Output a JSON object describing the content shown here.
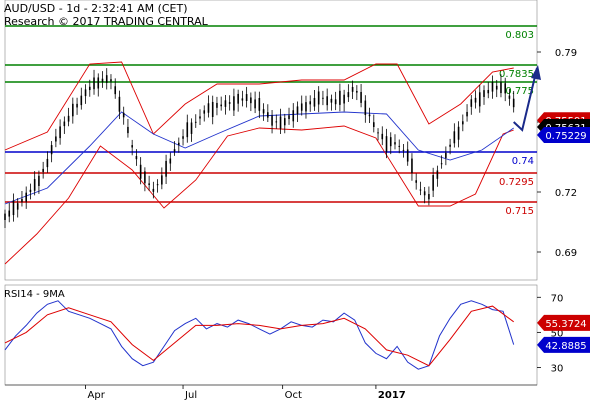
{
  "header": {
    "line1": "AUD/USD - 1d - 2:32:41 AM (CET)",
    "line2": "Research © 2017 TRADING CENTRAL"
  },
  "colors": {
    "green": "#008000",
    "blue": "#0000cc",
    "red": "#cc0000",
    "price": "#000000",
    "bollinger": "#dd0000",
    "ma": "#2233cc",
    "arrow": "#1a2a8a"
  },
  "chart_data": [
    {
      "type": "candlestick",
      "title": "AUD/USD - 1d",
      "price_axis": {
        "ticks": [
          "0.79",
          "0.755",
          "0.72",
          "0.69"
        ],
        "range": [
          0.676,
          0.816
        ]
      },
      "time_axis": {
        "ticks": [
          "Apr",
          "Jul",
          "Oct",
          "2017"
        ]
      },
      "levels": [
        {
          "label": "0.803",
          "value": 0.803,
          "color": "green",
          "style": "solid"
        },
        {
          "label": "0.7835",
          "value": 0.7835,
          "color": "green",
          "style": "solid"
        },
        {
          "label": "0.775",
          "value": 0.775,
          "color": "green",
          "style": "solid"
        },
        {
          "label": "0.74",
          "value": 0.74,
          "color": "blue",
          "style": "solid"
        },
        {
          "label": "0.7295",
          "value": 0.7295,
          "color": "red",
          "style": "solid"
        },
        {
          "label": "0.715",
          "value": 0.715,
          "color": "red",
          "style": "solid"
        }
      ],
      "price_tags": [
        {
          "label": "0.75591",
          "value": 0.7559,
          "color": "red"
        },
        {
          "label": "0.75631",
          "value": 0.7525,
          "color": "black"
        },
        {
          "label": "0.75229",
          "value": 0.7485,
          "color": "blue"
        }
      ],
      "price_path": [
        [
          0,
          0.708
        ],
        [
          5,
          0.712
        ],
        [
          10,
          0.718
        ],
        [
          15,
          0.724
        ],
        [
          20,
          0.735
        ],
        [
          25,
          0.749
        ],
        [
          30,
          0.757
        ],
        [
          35,
          0.765
        ],
        [
          40,
          0.772
        ],
        [
          45,
          0.776
        ],
        [
          50,
          0.776
        ],
        [
          55,
          0.762
        ],
        [
          60,
          0.743
        ],
        [
          65,
          0.728
        ],
        [
          70,
          0.721
        ],
        [
          75,
          0.728
        ],
        [
          80,
          0.741
        ],
        [
          85,
          0.749
        ],
        [
          90,
          0.755
        ],
        [
          95,
          0.761
        ],
        [
          100,
          0.763
        ],
        [
          105,
          0.764
        ],
        [
          110,
          0.766
        ],
        [
          115,
          0.767
        ],
        [
          120,
          0.763
        ],
        [
          125,
          0.757
        ],
        [
          130,
          0.754
        ],
        [
          135,
          0.758
        ],
        [
          140,
          0.762
        ],
        [
          145,
          0.765
        ],
        [
          150,
          0.767
        ],
        [
          155,
          0.765
        ],
        [
          160,
          0.767
        ],
        [
          165,
          0.772
        ],
        [
          170,
          0.763
        ],
        [
          175,
          0.751
        ],
        [
          180,
          0.745
        ],
        [
          185,
          0.744
        ],
        [
          190,
          0.739
        ],
        [
          195,
          0.722
        ],
        [
          200,
          0.718
        ],
        [
          205,
          0.732
        ],
        [
          210,
          0.743
        ],
        [
          215,
          0.752
        ],
        [
          220,
          0.764
        ],
        [
          225,
          0.768
        ],
        [
          230,
          0.772
        ],
        [
          235,
          0.773
        ],
        [
          240,
          0.764
        ]
      ],
      "projection": [
        [
          240,
          0.755
        ],
        [
          244,
          0.751
        ],
        [
          251,
          0.782
        ]
      ],
      "bollinger_upper": [
        [
          0,
          0.741
        ],
        [
          20,
          0.75
        ],
        [
          40,
          0.784
        ],
        [
          55,
          0.785
        ],
        [
          70,
          0.749
        ],
        [
          85,
          0.764
        ],
        [
          100,
          0.774
        ],
        [
          120,
          0.774
        ],
        [
          140,
          0.776
        ],
        [
          160,
          0.776
        ],
        [
          175,
          0.784
        ],
        [
          185,
          0.784
        ],
        [
          200,
          0.754
        ],
        [
          215,
          0.764
        ],
        [
          230,
          0.78
        ],
        [
          240,
          0.782
        ]
      ],
      "bollinger_lower": [
        [
          0,
          0.684
        ],
        [
          15,
          0.699
        ],
        [
          30,
          0.717
        ],
        [
          45,
          0.743
        ],
        [
          60,
          0.731
        ],
        [
          75,
          0.712
        ],
        [
          90,
          0.726
        ],
        [
          105,
          0.748
        ],
        [
          120,
          0.752
        ],
        [
          140,
          0.751
        ],
        [
          160,
          0.753
        ],
        [
          175,
          0.747
        ],
        [
          195,
          0.713
        ],
        [
          210,
          0.713
        ],
        [
          222,
          0.719
        ],
        [
          235,
          0.749
        ],
        [
          240,
          0.751
        ]
      ],
      "moving_average": [
        [
          0,
          0.714
        ],
        [
          20,
          0.722
        ],
        [
          40,
          0.743
        ],
        [
          55,
          0.76
        ],
        [
          70,
          0.749
        ],
        [
          85,
          0.742
        ],
        [
          100,
          0.749
        ],
        [
          120,
          0.758
        ],
        [
          140,
          0.759
        ],
        [
          160,
          0.76
        ],
        [
          180,
          0.759
        ],
        [
          195,
          0.741
        ],
        [
          210,
          0.736
        ],
        [
          225,
          0.741
        ],
        [
          240,
          0.752
        ]
      ]
    },
    {
      "type": "line",
      "title": "RSI14 - 9MA",
      "y_ticks": [
        "70",
        "50",
        "30"
      ],
      "range": [
        20,
        77
      ],
      "series": [
        {
          "name": "RSI14",
          "color": "ma",
          "values": [
            [
              0,
              40
            ],
            [
              5,
              48
            ],
            [
              10,
              54
            ],
            [
              15,
              61
            ],
            [
              20,
              66
            ],
            [
              25,
              68
            ],
            [
              30,
              62
            ],
            [
              35,
              60
            ],
            [
              40,
              58
            ],
            [
              45,
              55
            ],
            [
              50,
              52
            ],
            [
              55,
              42
            ],
            [
              60,
              35
            ],
            [
              65,
              31
            ],
            [
              70,
              33
            ],
            [
              75,
              42
            ],
            [
              80,
              51
            ],
            [
              85,
              55
            ],
            [
              90,
              58
            ],
            [
              95,
              52
            ],
            [
              100,
              55
            ],
            [
              105,
              53
            ],
            [
              110,
              57
            ],
            [
              115,
              55
            ],
            [
              120,
              52
            ],
            [
              125,
              49
            ],
            [
              130,
              52
            ],
            [
              135,
              56
            ],
            [
              140,
              54
            ],
            [
              145,
              53
            ],
            [
              150,
              57
            ],
            [
              155,
              56
            ],
            [
              160,
              61
            ],
            [
              165,
              57
            ],
            [
              170,
              44
            ],
            [
              175,
              38
            ],
            [
              180,
              35
            ],
            [
              185,
              42
            ],
            [
              190,
              33
            ],
            [
              195,
              29
            ],
            [
              200,
              31
            ],
            [
              205,
              48
            ],
            [
              210,
              58
            ],
            [
              215,
              66
            ],
            [
              220,
              68
            ],
            [
              225,
              66
            ],
            [
              230,
              63
            ],
            [
              235,
              62
            ],
            [
              240,
              43
            ]
          ]
        },
        {
          "name": "9MA",
          "color": "bollinger",
          "values": [
            [
              0,
              44
            ],
            [
              10,
              50
            ],
            [
              20,
              60
            ],
            [
              30,
              64
            ],
            [
              40,
              60
            ],
            [
              50,
              56
            ],
            [
              60,
              43
            ],
            [
              70,
              34
            ],
            [
              80,
              44
            ],
            [
              90,
              54
            ],
            [
              100,
              54
            ],
            [
              110,
              55
            ],
            [
              120,
              54
            ],
            [
              130,
              52
            ],
            [
              140,
              54
            ],
            [
              150,
              55
            ],
            [
              160,
              58
            ],
            [
              170,
              52
            ],
            [
              180,
              40
            ],
            [
              190,
              37
            ],
            [
              200,
              31
            ],
            [
              210,
              46
            ],
            [
              220,
              62
            ],
            [
              230,
              65
            ],
            [
              240,
              56
            ]
          ]
        }
      ],
      "value_tags": [
        {
          "label": "55.3724",
          "value": 55.4,
          "color": "red"
        },
        {
          "label": "42.8885",
          "value": 42.9,
          "color": "blue"
        }
      ]
    }
  ]
}
